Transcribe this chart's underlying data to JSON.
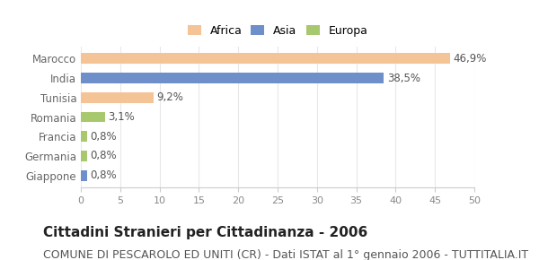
{
  "categories": [
    "Giappone",
    "Germania",
    "Francia",
    "Romania",
    "Tunisia",
    "India",
    "Marocco"
  ],
  "values": [
    0.8,
    0.8,
    0.8,
    3.1,
    9.2,
    38.5,
    46.9
  ],
  "labels": [
    "0,8%",
    "0,8%",
    "0,8%",
    "3,1%",
    "9,2%",
    "38,5%",
    "46,9%"
  ],
  "colors": [
    "#6e8fc9",
    "#a8c86e",
    "#a8c86e",
    "#a8c86e",
    "#f5c496",
    "#6e8fc9",
    "#f5c496"
  ],
  "legend_items": [
    {
      "label": "Africa",
      "color": "#f5c496"
    },
    {
      "label": "Asia",
      "color": "#6e8fc9"
    },
    {
      "label": "Europa",
      "color": "#a8c86e"
    }
  ],
  "xlim": [
    0,
    50
  ],
  "xticks": [
    0,
    5,
    10,
    15,
    20,
    25,
    30,
    35,
    40,
    45,
    50
  ],
  "title": "Cittadini Stranieri per Cittadinanza - 2006",
  "subtitle": "COMUNE DI PESCAROLO ED UNITI (CR) - Dati ISTAT al 1° gennaio 2006 - TUTTITALIA.IT",
  "background_color": "#ffffff",
  "bar_height": 0.55,
  "title_fontsize": 11,
  "subtitle_fontsize": 9,
  "label_fontsize": 8.5,
  "tick_fontsize": 8,
  "ytick_fontsize": 8.5
}
